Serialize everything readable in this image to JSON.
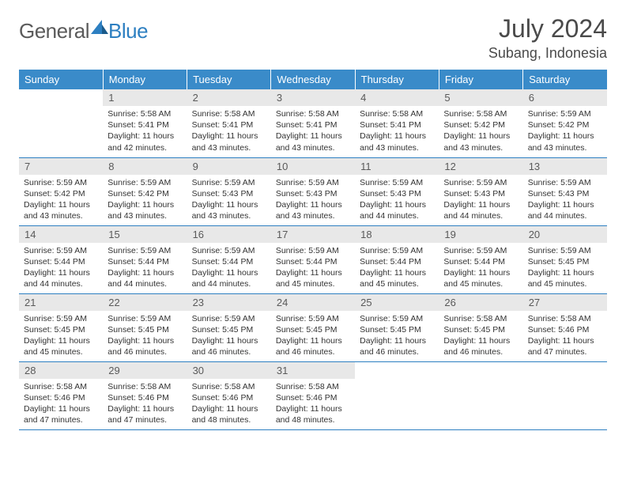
{
  "logo": {
    "text1": "General",
    "text2": "Blue"
  },
  "title": "July 2024",
  "location": "Subang, Indonesia",
  "weekdays": [
    "Sunday",
    "Monday",
    "Tuesday",
    "Wednesday",
    "Thursday",
    "Friday",
    "Saturday"
  ],
  "colors": {
    "header_bg": "#3a8bc9",
    "header_text": "#ffffff",
    "daynum_bg": "#e8e8e8",
    "border": "#2d7fc1",
    "logo_blue": "#2d7fc1",
    "logo_gray": "#5a5a5a"
  },
  "weeks": [
    [
      {
        "n": "",
        "sr": "",
        "ss": "",
        "dl": ""
      },
      {
        "n": "1",
        "sr": "Sunrise: 5:58 AM",
        "ss": "Sunset: 5:41 PM",
        "dl": "Daylight: 11 hours and 42 minutes."
      },
      {
        "n": "2",
        "sr": "Sunrise: 5:58 AM",
        "ss": "Sunset: 5:41 PM",
        "dl": "Daylight: 11 hours and 43 minutes."
      },
      {
        "n": "3",
        "sr": "Sunrise: 5:58 AM",
        "ss": "Sunset: 5:41 PM",
        "dl": "Daylight: 11 hours and 43 minutes."
      },
      {
        "n": "4",
        "sr": "Sunrise: 5:58 AM",
        "ss": "Sunset: 5:41 PM",
        "dl": "Daylight: 11 hours and 43 minutes."
      },
      {
        "n": "5",
        "sr": "Sunrise: 5:58 AM",
        "ss": "Sunset: 5:42 PM",
        "dl": "Daylight: 11 hours and 43 minutes."
      },
      {
        "n": "6",
        "sr": "Sunrise: 5:59 AM",
        "ss": "Sunset: 5:42 PM",
        "dl": "Daylight: 11 hours and 43 minutes."
      }
    ],
    [
      {
        "n": "7",
        "sr": "Sunrise: 5:59 AM",
        "ss": "Sunset: 5:42 PM",
        "dl": "Daylight: 11 hours and 43 minutes."
      },
      {
        "n": "8",
        "sr": "Sunrise: 5:59 AM",
        "ss": "Sunset: 5:42 PM",
        "dl": "Daylight: 11 hours and 43 minutes."
      },
      {
        "n": "9",
        "sr": "Sunrise: 5:59 AM",
        "ss": "Sunset: 5:43 PM",
        "dl": "Daylight: 11 hours and 43 minutes."
      },
      {
        "n": "10",
        "sr": "Sunrise: 5:59 AM",
        "ss": "Sunset: 5:43 PM",
        "dl": "Daylight: 11 hours and 43 minutes."
      },
      {
        "n": "11",
        "sr": "Sunrise: 5:59 AM",
        "ss": "Sunset: 5:43 PM",
        "dl": "Daylight: 11 hours and 44 minutes."
      },
      {
        "n": "12",
        "sr": "Sunrise: 5:59 AM",
        "ss": "Sunset: 5:43 PM",
        "dl": "Daylight: 11 hours and 44 minutes."
      },
      {
        "n": "13",
        "sr": "Sunrise: 5:59 AM",
        "ss": "Sunset: 5:43 PM",
        "dl": "Daylight: 11 hours and 44 minutes."
      }
    ],
    [
      {
        "n": "14",
        "sr": "Sunrise: 5:59 AM",
        "ss": "Sunset: 5:44 PM",
        "dl": "Daylight: 11 hours and 44 minutes."
      },
      {
        "n": "15",
        "sr": "Sunrise: 5:59 AM",
        "ss": "Sunset: 5:44 PM",
        "dl": "Daylight: 11 hours and 44 minutes."
      },
      {
        "n": "16",
        "sr": "Sunrise: 5:59 AM",
        "ss": "Sunset: 5:44 PM",
        "dl": "Daylight: 11 hours and 44 minutes."
      },
      {
        "n": "17",
        "sr": "Sunrise: 5:59 AM",
        "ss": "Sunset: 5:44 PM",
        "dl": "Daylight: 11 hours and 45 minutes."
      },
      {
        "n": "18",
        "sr": "Sunrise: 5:59 AM",
        "ss": "Sunset: 5:44 PM",
        "dl": "Daylight: 11 hours and 45 minutes."
      },
      {
        "n": "19",
        "sr": "Sunrise: 5:59 AM",
        "ss": "Sunset: 5:44 PM",
        "dl": "Daylight: 11 hours and 45 minutes."
      },
      {
        "n": "20",
        "sr": "Sunrise: 5:59 AM",
        "ss": "Sunset: 5:45 PM",
        "dl": "Daylight: 11 hours and 45 minutes."
      }
    ],
    [
      {
        "n": "21",
        "sr": "Sunrise: 5:59 AM",
        "ss": "Sunset: 5:45 PM",
        "dl": "Daylight: 11 hours and 45 minutes."
      },
      {
        "n": "22",
        "sr": "Sunrise: 5:59 AM",
        "ss": "Sunset: 5:45 PM",
        "dl": "Daylight: 11 hours and 46 minutes."
      },
      {
        "n": "23",
        "sr": "Sunrise: 5:59 AM",
        "ss": "Sunset: 5:45 PM",
        "dl": "Daylight: 11 hours and 46 minutes."
      },
      {
        "n": "24",
        "sr": "Sunrise: 5:59 AM",
        "ss": "Sunset: 5:45 PM",
        "dl": "Daylight: 11 hours and 46 minutes."
      },
      {
        "n": "25",
        "sr": "Sunrise: 5:59 AM",
        "ss": "Sunset: 5:45 PM",
        "dl": "Daylight: 11 hours and 46 minutes."
      },
      {
        "n": "26",
        "sr": "Sunrise: 5:58 AM",
        "ss": "Sunset: 5:45 PM",
        "dl": "Daylight: 11 hours and 46 minutes."
      },
      {
        "n": "27",
        "sr": "Sunrise: 5:58 AM",
        "ss": "Sunset: 5:46 PM",
        "dl": "Daylight: 11 hours and 47 minutes."
      }
    ],
    [
      {
        "n": "28",
        "sr": "Sunrise: 5:58 AM",
        "ss": "Sunset: 5:46 PM",
        "dl": "Daylight: 11 hours and 47 minutes."
      },
      {
        "n": "29",
        "sr": "Sunrise: 5:58 AM",
        "ss": "Sunset: 5:46 PM",
        "dl": "Daylight: 11 hours and 47 minutes."
      },
      {
        "n": "30",
        "sr": "Sunrise: 5:58 AM",
        "ss": "Sunset: 5:46 PM",
        "dl": "Daylight: 11 hours and 48 minutes."
      },
      {
        "n": "31",
        "sr": "Sunrise: 5:58 AM",
        "ss": "Sunset: 5:46 PM",
        "dl": "Daylight: 11 hours and 48 minutes."
      },
      {
        "n": "",
        "sr": "",
        "ss": "",
        "dl": ""
      },
      {
        "n": "",
        "sr": "",
        "ss": "",
        "dl": ""
      },
      {
        "n": "",
        "sr": "",
        "ss": "",
        "dl": ""
      }
    ]
  ]
}
